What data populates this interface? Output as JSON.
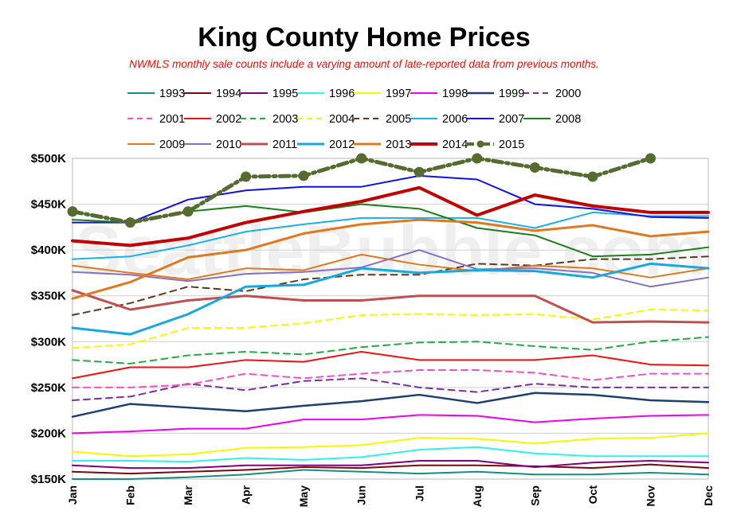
{
  "chart_data": {
    "type": "line",
    "title": "King County Home Prices",
    "subtitle": "NWMLS monthly sale counts include a varying amount of late-reported  data from previous months.",
    "watermark": "SeattleBubble.com",
    "xlabel": "",
    "ylabel": "",
    "categories": [
      "Jan",
      "Feb",
      "Mar",
      "Apr",
      "May",
      "Jun",
      "Jul",
      "Aug",
      "Sep",
      "Oct",
      "Nov",
      "Dec"
    ],
    "ylim": [
      150000,
      500000
    ],
    "yticks": [
      150000,
      200000,
      250000,
      300000,
      350000,
      400000,
      450000,
      500000
    ],
    "ytick_labels": [
      "$150K",
      "$200K",
      "$250K",
      "$300K",
      "$350K",
      "$400K",
      "$450K",
      "$500K"
    ],
    "grid": "horizontal",
    "legend_position": "top",
    "series": [
      {
        "name": "1993",
        "color": "#1a8c7e",
        "style": "solid",
        "width": 2,
        "values": [
          150000,
          150000,
          152000,
          155000,
          160000,
          158000,
          156000,
          158000,
          155000,
          155000,
          157000,
          155000
        ]
      },
      {
        "name": "1994",
        "color": "#7a0a0a",
        "style": "solid",
        "width": 2,
        "values": [
          158000,
          156000,
          158000,
          160000,
          163000,
          162000,
          165000,
          165000,
          164000,
          162000,
          166000,
          162000
        ]
      },
      {
        "name": "1995",
        "color": "#800080",
        "style": "solid",
        "width": 2,
        "values": [
          165000,
          162000,
          162000,
          165000,
          165000,
          165000,
          170000,
          170000,
          163000,
          168000,
          170000,
          168000
        ]
      },
      {
        "name": "1996",
        "color": "#33f0f0",
        "style": "solid",
        "width": 2,
        "values": [
          170000,
          170000,
          169000,
          173000,
          171000,
          174000,
          182000,
          185000,
          178000,
          175000,
          175000,
          175000
        ]
      },
      {
        "name": "1997",
        "color": "#f7f700",
        "style": "solid",
        "width": 2,
        "values": [
          180000,
          175000,
          177000,
          184000,
          185000,
          187000,
          195000,
          194000,
          189000,
          194000,
          195000,
          200000
        ]
      },
      {
        "name": "1998",
        "color": "#f000f0",
        "style": "solid",
        "width": 2,
        "values": [
          200000,
          202000,
          205000,
          205000,
          215000,
          215000,
          220000,
          219000,
          212000,
          216000,
          219000,
          220000
        ]
      },
      {
        "name": "1999",
        "color": "#1f3f6e",
        "style": "solid",
        "width": 2.5,
        "values": [
          218000,
          232000,
          228000,
          224000,
          230000,
          235000,
          242000,
          233000,
          244000,
          242000,
          236000,
          234000
        ]
      },
      {
        "name": "2000",
        "color": "#7a2f9a",
        "style": "dash",
        "width": 2,
        "values": [
          236000,
          240000,
          254000,
          247000,
          257000,
          260000,
          250000,
          245000,
          254000,
          250000,
          250000,
          250000
        ]
      },
      {
        "name": "2001",
        "color": "#f050c8",
        "style": "dash",
        "width": 2,
        "values": [
          250000,
          250000,
          253000,
          265000,
          260000,
          265000,
          269000,
          269000,
          266000,
          258000,
          265000,
          265000
        ]
      },
      {
        "name": "2002",
        "color": "#ee1111",
        "style": "solid",
        "width": 2,
        "values": [
          260000,
          272000,
          272000,
          280000,
          278000,
          289000,
          280000,
          280000,
          280000,
          285000,
          275000,
          274000
        ]
      },
      {
        "name": "2003",
        "color": "#22aa44",
        "style": "dash",
        "width": 2,
        "values": [
          280000,
          276000,
          285000,
          289000,
          286000,
          294000,
          299000,
          300000,
          295000,
          291000,
          300000,
          305000
        ]
      },
      {
        "name": "2004",
        "color": "#f7f700",
        "style": "dash",
        "width": 2,
        "values": [
          293000,
          297000,
          315000,
          315000,
          320000,
          329000,
          330000,
          329000,
          330000,
          324000,
          335000,
          334000
        ]
      },
      {
        "name": "2005",
        "color": "#5c3a1e",
        "style": "dash",
        "width": 2,
        "values": [
          329000,
          342000,
          360000,
          355000,
          368000,
          373000,
          373000,
          385000,
          383000,
          390000,
          390000,
          393000
        ]
      },
      {
        "name": "2006",
        "color": "#1ab0e8",
        "style": "solid",
        "width": 2,
        "values": [
          390000,
          393000,
          405000,
          420000,
          428000,
          435000,
          435000,
          435000,
          424000,
          441000,
          437000,
          437000
        ]
      },
      {
        "name": "2007",
        "color": "#1010e0",
        "style": "solid",
        "width": 2,
        "values": [
          430000,
          430000,
          455000,
          465000,
          469000,
          469000,
          481000,
          477000,
          450000,
          445000,
          436000,
          435000
        ]
      },
      {
        "name": "2008",
        "color": "#188018",
        "style": "solid",
        "width": 2,
        "values": [
          433000,
          430000,
          442000,
          448000,
          441000,
          450000,
          445000,
          424000,
          416000,
          393000,
          395000,
          403000
        ]
      },
      {
        "name": "2009",
        "color": "#e07820",
        "style": "solid",
        "width": 2,
        "values": [
          383000,
          375000,
          368000,
          380000,
          378000,
          395000,
          384000,
          377000,
          383000,
          380000,
          370000,
          380000
        ]
      },
      {
        "name": "2010",
        "color": "#8870c0",
        "style": "solid",
        "width": 2,
        "values": [
          376000,
          373000,
          366000,
          374000,
          376000,
          381000,
          400000,
          379000,
          380000,
          375000,
          360000,
          370000
        ]
      },
      {
        "name": "2011",
        "color": "#c05050",
        "style": "solid",
        "width": 3,
        "values": [
          356000,
          335000,
          345000,
          350000,
          345000,
          345000,
          350000,
          350000,
          350000,
          321000,
          322000,
          321000
        ]
      },
      {
        "name": "2012",
        "color": "#18a8e0",
        "style": "solid",
        "width": 3,
        "values": [
          315000,
          308000,
          330000,
          360000,
          362000,
          380000,
          375000,
          378000,
          377000,
          370000,
          385000,
          380000
        ]
      },
      {
        "name": "2013",
        "color": "#e07820",
        "style": "solid",
        "width": 3,
        "values": [
          347000,
          365000,
          392000,
          400000,
          418000,
          428000,
          433000,
          430000,
          421000,
          427000,
          415000,
          420000
        ]
      },
      {
        "name": "2014",
        "color": "#c00000",
        "style": "solid",
        "width": 4,
        "values": [
          410000,
          405000,
          413000,
          430000,
          442000,
          453000,
          468000,
          438000,
          460000,
          448000,
          441000,
          441000
        ]
      },
      {
        "name": "2015",
        "color": "#556b2f",
        "style": "dashdot",
        "width": 5,
        "markers": true,
        "values": [
          442000,
          430000,
          442000,
          480000,
          481000,
          500000,
          485000,
          500000,
          490000,
          480000,
          500000,
          null
        ]
      }
    ]
  }
}
